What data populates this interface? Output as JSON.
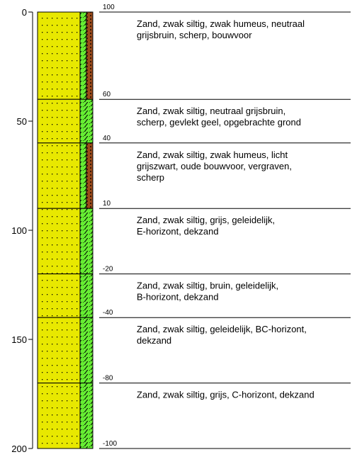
{
  "axis": {
    "lim": [
      0,
      200
    ],
    "ticks": [
      0,
      50,
      100,
      150,
      200
    ]
  },
  "levels": [
    100,
    60,
    40,
    10,
    -20,
    -40,
    -80,
    -100
  ],
  "layers": [
    {
      "top": 0,
      "bottom": 40,
      "humus_strip": true,
      "description": [
        "Zand, zwak siltig, zwak humeus, neutraal",
        "grijsbruin, scherp, bouwvoor"
      ]
    },
    {
      "top": 40,
      "bottom": 60,
      "humus_strip": false,
      "description": [
        "Zand, zwak siltig, neutraal grijsbruin,",
        "scherp, gevlekt geel, opgebrachte grond"
      ]
    },
    {
      "top": 60,
      "bottom": 90,
      "humus_strip": true,
      "description": [
        "Zand, zwak siltig, zwak humeus, licht",
        "grijszwart, oude bouwvoor, vergraven,",
        "scherp"
      ]
    },
    {
      "top": 90,
      "bottom": 120,
      "humus_strip": false,
      "description": [
        "Zand, zwak siltig, grijs, geleidelijk,",
        "E-horizont, dekzand"
      ]
    },
    {
      "top": 120,
      "bottom": 140,
      "humus_strip": false,
      "description": [
        "Zand, zwak siltig, bruin, geleidelijk,",
        "B-horizont, dekzand"
      ]
    },
    {
      "top": 140,
      "bottom": 170,
      "humus_strip": false,
      "description": [
        "Zand, zwak siltig, geleidelijk, BC-horizont,",
        "dekzand"
      ]
    },
    {
      "top": 170,
      "bottom": 200,
      "humus_strip": false,
      "description": [
        "Zand, zwak siltig, grijs, C-horizont, dekzand"
      ]
    }
  ]
}
